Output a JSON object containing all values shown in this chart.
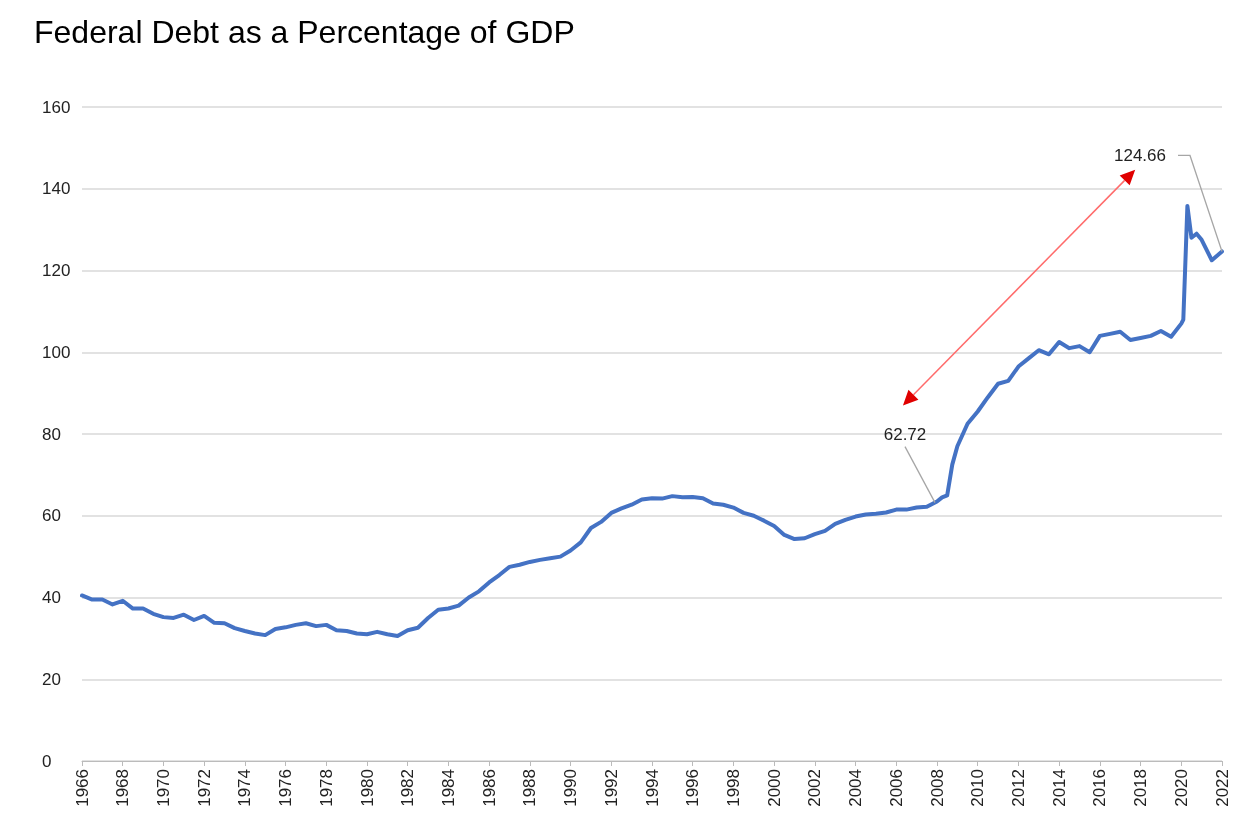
{
  "chart_data": {
    "type": "line",
    "title": "Federal Debt as a Percentage of GDP",
    "x": [
      1966,
      1966.5,
      1967,
      1967.5,
      1968,
      1968.5,
      1969,
      1969.5,
      1970,
      1970.5,
      1971,
      1971.5,
      1972,
      1972.5,
      1973,
      1973.5,
      1974,
      1974.5,
      1975,
      1975.5,
      1976,
      1976.5,
      1977,
      1977.5,
      1978,
      1978.5,
      1979,
      1979.5,
      1980,
      1980.5,
      1981,
      1981.5,
      1982,
      1982.5,
      1983,
      1983.5,
      1984,
      1984.5,
      1985,
      1985.5,
      1986,
      1986.5,
      1987,
      1987.5,
      1988,
      1988.5,
      1989,
      1989.5,
      1990,
      1990.5,
      1991,
      1991.5,
      1992,
      1992.5,
      1993,
      1993.5,
      1994,
      1994.5,
      1995,
      1995.5,
      1996,
      1996.5,
      1997,
      1997.5,
      1998,
      1998.5,
      1999,
      1999.5,
      2000,
      2000.5,
      2001,
      2001.5,
      2002,
      2002.5,
      2003,
      2003.5,
      2004,
      2004.5,
      2005,
      2005.5,
      2006,
      2006.5,
      2007,
      2007.5,
      2008,
      2008.25,
      2008.5,
      2008.75,
      2009,
      2009.5,
      2010,
      2010.5,
      2011,
      2011.5,
      2012,
      2012.5,
      2013,
      2013.5,
      2014,
      2014.5,
      2015,
      2015.5,
      2016,
      2016.5,
      2017,
      2017.5,
      2018,
      2018.5,
      2019,
      2019.5,
      2020,
      2020.1,
      2020.3,
      2020.5,
      2020.75,
      2021,
      2021.5,
      2022
    ],
    "series": [
      {
        "color": "#4472c4",
        "values": [
          40.5,
          39.5,
          39.5,
          38.3,
          39.2,
          37.3,
          37.3,
          36,
          35.2,
          35,
          35.8,
          34.5,
          35.5,
          33.8,
          33.7,
          32.5,
          31.8,
          31.2,
          30.8,
          32.3,
          32.7,
          33.3,
          33.7,
          33,
          33.3,
          32,
          31.8,
          31.2,
          31,
          31.6,
          31,
          30.6,
          32,
          32.6,
          35,
          37,
          37.3,
          38,
          40,
          41.5,
          43.7,
          45.5,
          47.5,
          48,
          48.7,
          49.2,
          49.6,
          50,
          51.5,
          53.5,
          57,
          58.5,
          60.7,
          61.8,
          62.7,
          64,
          64.3,
          64.2,
          64.8,
          64.5,
          64.6,
          64.3,
          63,
          62.7,
          62,
          60.7,
          60,
          58.8,
          57.5,
          55.3,
          54.3,
          54.5,
          55.5,
          56.3,
          58,
          59,
          59.8,
          60.3,
          60.5,
          60.8,
          61.5,
          61.5,
          62,
          62.2,
          63.5,
          64.5,
          65,
          72.5,
          77,
          82.5,
          85.5,
          89,
          92.3,
          93,
          96.5,
          98.5,
          100.5,
          99.5,
          102.5,
          101,
          101.5,
          100,
          104,
          104.5,
          105,
          103,
          103.5,
          104,
          105.2,
          103.8,
          107,
          108,
          135.8,
          128,
          129,
          127.5,
          122.5,
          124.66
        ]
      }
    ],
    "xlim": [
      1966,
      2022
    ],
    "xticks": [
      1966,
      1968,
      1970,
      1972,
      1974,
      1976,
      1978,
      1980,
      1982,
      1984,
      1986,
      1988,
      1990,
      1992,
      1994,
      1996,
      1998,
      2000,
      2002,
      2004,
      2006,
      2008,
      2010,
      2012,
      2014,
      2016,
      2018,
      2020,
      2022
    ],
    "ylim": [
      0,
      160
    ],
    "yticks": [
      0,
      20,
      40,
      60,
      80,
      100,
      120,
      140,
      160
    ],
    "grid": "y",
    "marker": "none",
    "line_style": "solid",
    "annotations": [
      {
        "text": "62.72",
        "x": 2008,
        "y": 62.72
      },
      {
        "text": "124.66",
        "x": 2022,
        "y": 124.66
      }
    ]
  }
}
